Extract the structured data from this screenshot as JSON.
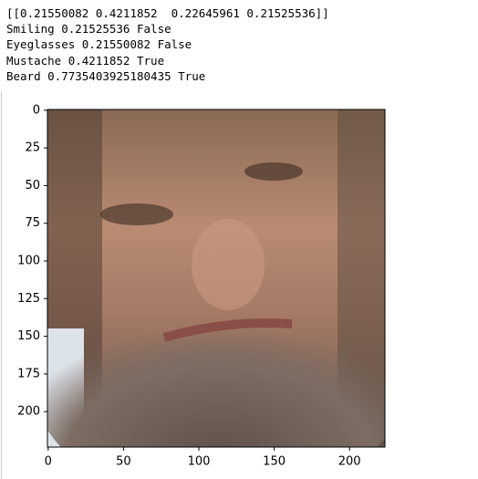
{
  "output": {
    "lines": [
      "[[0.21550082 0.4211852  0.22645961 0.21525536]]",
      "Smiling 0.21525536 False",
      "Eyeglasses 0.21550082 False",
      "Mustache 0.4211852 True",
      "Beard 0.7735403925180435 True"
    ]
  },
  "plot": {
    "type": "image",
    "xlim": [
      -0.5,
      223.5
    ],
    "ylim": [
      223.5,
      -0.5
    ],
    "xticks": [
      0,
      50,
      100,
      150,
      200
    ],
    "yticks": [
      0,
      25,
      50,
      75,
      100,
      125,
      150,
      175,
      200
    ]
  }
}
